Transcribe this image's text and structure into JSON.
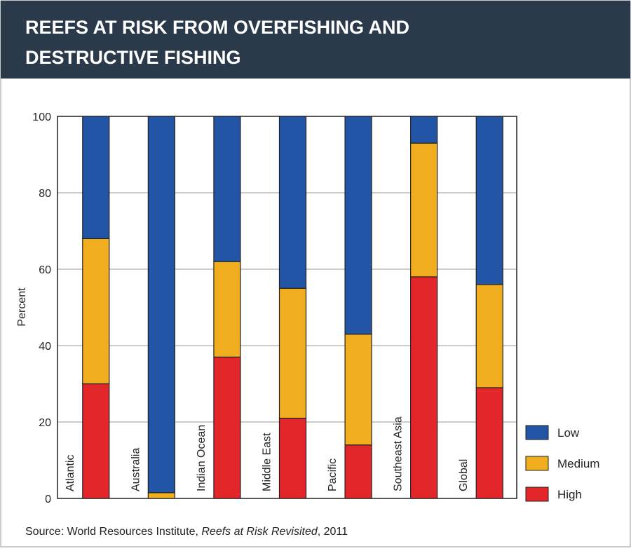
{
  "chart_data": {
    "type": "stacked_bar",
    "title_lines": [
      "REEFS AT RISK FROM OVERFISHING AND",
      "DESTRUCTIVE FISHING"
    ],
    "y_label": "Percent",
    "categories": [
      "Atlantic",
      "Australia",
      "Indian Ocean",
      "Middle East",
      "Pacific",
      "Southeast Asia",
      "Global"
    ],
    "series": [
      {
        "name": "High",
        "color": "#e3262a",
        "values": [
          30,
          0,
          37,
          21,
          14,
          58,
          29
        ]
      },
      {
        "name": "Medium",
        "color": "#f0ad1e",
        "values": [
          38,
          1.5,
          25,
          34,
          29,
          35,
          27
        ]
      },
      {
        "name": "Low",
        "color": "#2355a6",
        "values": [
          32,
          98.5,
          38,
          45,
          57,
          7,
          44
        ]
      }
    ],
    "ylim": [
      0,
      100
    ],
    "yticks": [
      0,
      20,
      40,
      60,
      80,
      100
    ],
    "grid": true,
    "legend": "right",
    "source": {
      "prefix": "Source: World Resources Institute, ",
      "title": "Reefs at Risk Revisited",
      "suffix": ", 2011"
    }
  }
}
